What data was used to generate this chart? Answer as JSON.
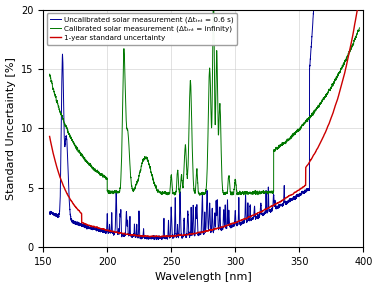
{
  "title": "",
  "xlabel": "Wavelength [nm]",
  "ylabel": "Standard Uncertainty [%]",
  "xlim": [
    150,
    400
  ],
  "ylim": [
    0,
    20
  ],
  "xticks": [
    150,
    200,
    250,
    300,
    350,
    400
  ],
  "yticks": [
    0,
    5,
    10,
    15,
    20
  ],
  "legend": [
    {
      "label": "1-year standard uncertainty",
      "color": "#cc0000",
      "lw": 1.0
    },
    {
      "label": "Uncalibrated solar measurement (Δtₜₙₜ = 0.6 s)",
      "color": "#000099",
      "lw": 0.7
    },
    {
      "label": "Calibrated solar measurement (Δtₜₙₜ = infinity)",
      "color": "#007700",
      "lw": 0.7
    }
  ],
  "background_color": "#ffffff",
  "grid": true,
  "figsize": [
    3.78,
    2.88
  ],
  "dpi": 100
}
